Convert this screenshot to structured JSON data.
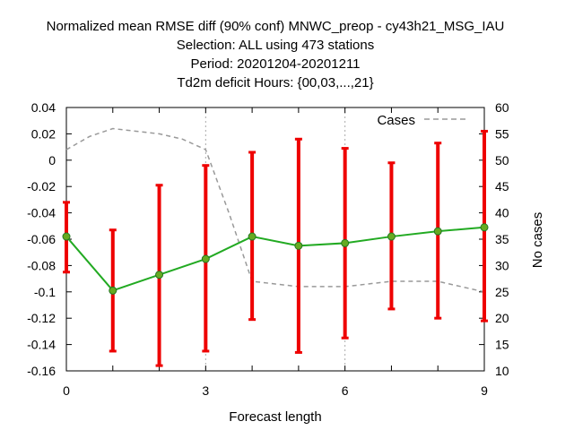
{
  "chart_data": {
    "type": "line",
    "title_lines": [
      "Normalized mean RMSE diff (90% conf) MNWC_preop - cy43h21_MSG_IAU",
      "Selection: ALL using   473 stations",
      "Period: 20201204-20201211",
      "Td2m deficit   Hours: {00,03,...,21}"
    ],
    "xlabel": "Forecast length",
    "ylabel_right": "No cases",
    "xlim": [
      0,
      9
    ],
    "ylim": [
      -0.16,
      0.04
    ],
    "y2lim": [
      10,
      60
    ],
    "x_ticks": [
      0,
      3,
      6,
      9
    ],
    "y_ticks": [
      "0.04",
      "0.02",
      "0",
      "-0.02",
      "-0.04",
      "-0.06",
      "-0.08",
      "-0.1",
      "-0.12",
      "-0.14",
      "-0.16"
    ],
    "y2_ticks": [
      "60",
      "55",
      "50",
      "45",
      "40",
      "35",
      "30",
      "25",
      "20",
      "15",
      "10"
    ],
    "grid": "vertical at x ticks",
    "legend_position": "top-right",
    "x": [
      0,
      1,
      2,
      3,
      4,
      5,
      6,
      7,
      8,
      9
    ],
    "series": [
      {
        "name": "",
        "kind": "mean_with_errorbars",
        "color": "#22aa22",
        "errorbar_color": "#ee0000",
        "values": [
          -0.058,
          -0.099,
          -0.087,
          -0.075,
          -0.058,
          -0.065,
          -0.063,
          -0.058,
          -0.054,
          -0.051
        ],
        "lower": [
          -0.085,
          -0.145,
          -0.156,
          -0.145,
          -0.121,
          -0.146,
          -0.135,
          -0.113,
          -0.12,
          -0.122
        ],
        "upper": [
          -0.032,
          -0.053,
          -0.019,
          -0.004,
          0.006,
          0.016,
          0.009,
          -0.002,
          0.013,
          0.022
        ]
      },
      {
        "name": "Cases",
        "kind": "cases",
        "axis": "right",
        "color": "#999999",
        "x": [
          0,
          0.5,
          1,
          1.5,
          2,
          2.5,
          3,
          3.5,
          4,
          5,
          6,
          7,
          8,
          9
        ],
        "values": [
          52,
          54.5,
          56,
          55.5,
          55,
          54,
          52,
          40,
          27,
          26,
          26,
          27,
          27,
          25
        ]
      }
    ]
  }
}
